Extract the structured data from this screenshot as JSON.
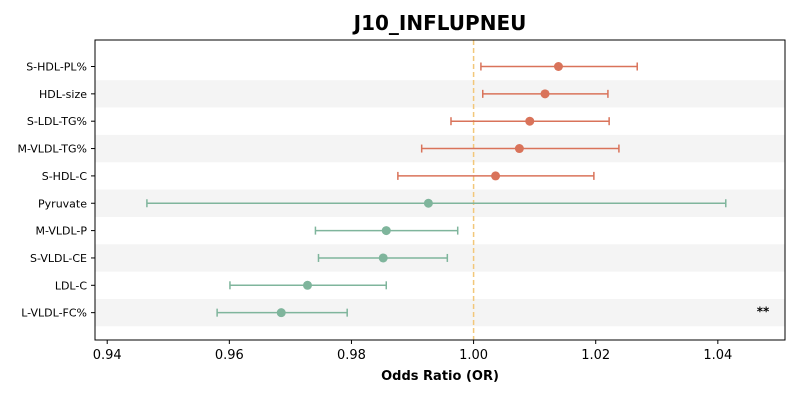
{
  "chart_data": {
    "type": "forest",
    "title": "J10_INFLUPNEU",
    "xlabel": "Odds Ratio (OR)",
    "xlim": [
      0.938,
      1.051
    ],
    "xticks": [
      0.94,
      0.96,
      0.98,
      1.0,
      1.02,
      1.04
    ],
    "xtick_labels": [
      "0.94",
      "0.96",
      "0.98",
      "1.00",
      "1.02",
      "1.04"
    ],
    "reference_line": 1.0,
    "colors": {
      "positive": "#d9735a",
      "negative": "#7fb59c",
      "reference": "#f2c77a",
      "band": "#f4f4f4"
    },
    "items": [
      {
        "label": "S-HDL-PL%",
        "or": 1.0139,
        "ci_low": 1.0012,
        "ci_high": 1.0268,
        "direction": "positive",
        "sig": ""
      },
      {
        "label": "HDL-size",
        "or": 1.0117,
        "ci_low": 1.0015,
        "ci_high": 1.022,
        "direction": "positive",
        "sig": ""
      },
      {
        "label": "S-LDL-TG%",
        "or": 1.0092,
        "ci_low": 0.9963,
        "ci_high": 1.0222,
        "direction": "positive",
        "sig": ""
      },
      {
        "label": "M-VLDL-TG%",
        "or": 1.0075,
        "ci_low": 0.9915,
        "ci_high": 1.0238,
        "direction": "positive",
        "sig": ""
      },
      {
        "label": "S-HDL-C",
        "or": 1.0036,
        "ci_low": 0.9876,
        "ci_high": 1.0197,
        "direction": "positive",
        "sig": ""
      },
      {
        "label": "Pyruvate",
        "or": 0.9926,
        "ci_low": 0.9465,
        "ci_high": 1.0413,
        "direction": "negative",
        "sig": ""
      },
      {
        "label": "M-VLDL-P",
        "or": 0.9857,
        "ci_low": 0.9741,
        "ci_high": 0.9974,
        "direction": "negative",
        "sig": ""
      },
      {
        "label": "S-VLDL-CE",
        "or": 0.9852,
        "ci_low": 0.9746,
        "ci_high": 0.9957,
        "direction": "negative",
        "sig": ""
      },
      {
        "label": "LDL-C",
        "or": 0.9728,
        "ci_low": 0.9601,
        "ci_high": 0.9857,
        "direction": "negative",
        "sig": ""
      },
      {
        "label": "L-VLDL-FC%",
        "or": 0.9685,
        "ci_low": 0.958,
        "ci_high": 0.9793,
        "direction": "negative",
        "sig": "**"
      }
    ]
  }
}
